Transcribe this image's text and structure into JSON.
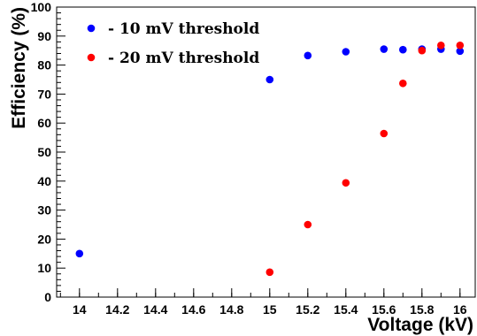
{
  "chart_data": {
    "type": "scatter",
    "xlabel": "Voltage (kV)",
    "ylabel": "Efficiency (%)",
    "xlim": [
      13.88,
      16.08
    ],
    "ylim": [
      0,
      100
    ],
    "x_ticks": [
      14,
      14.2,
      14.4,
      14.6,
      14.8,
      15,
      15.2,
      15.4,
      15.6,
      15.8,
      16
    ],
    "y_ticks": [
      0,
      10,
      20,
      30,
      40,
      50,
      60,
      70,
      80,
      90,
      100
    ],
    "grid": false,
    "legend_position": "top-left",
    "series": [
      {
        "name": "- 10 mV threshold",
        "color": "#0000ff",
        "points": [
          {
            "x": 14.0,
            "y": 15.0
          },
          {
            "x": 15.0,
            "y": 75.0
          },
          {
            "x": 15.2,
            "y": 83.3
          },
          {
            "x": 15.4,
            "y": 84.6
          },
          {
            "x": 15.6,
            "y": 85.5
          },
          {
            "x": 15.7,
            "y": 85.3
          },
          {
            "x": 15.8,
            "y": 85.5
          },
          {
            "x": 15.9,
            "y": 85.5
          },
          {
            "x": 16.0,
            "y": 84.8
          }
        ]
      },
      {
        "name": "- 20 mV threshold",
        "color": "#ff0000",
        "points": [
          {
            "x": 15.0,
            "y": 8.6
          },
          {
            "x": 15.2,
            "y": 25.0
          },
          {
            "x": 15.4,
            "y": 39.4
          },
          {
            "x": 15.6,
            "y": 56.4
          },
          {
            "x": 15.7,
            "y": 73.7
          },
          {
            "x": 15.8,
            "y": 85.0
          },
          {
            "x": 15.9,
            "y": 86.8
          },
          {
            "x": 16.0,
            "y": 86.8
          }
        ]
      }
    ]
  }
}
